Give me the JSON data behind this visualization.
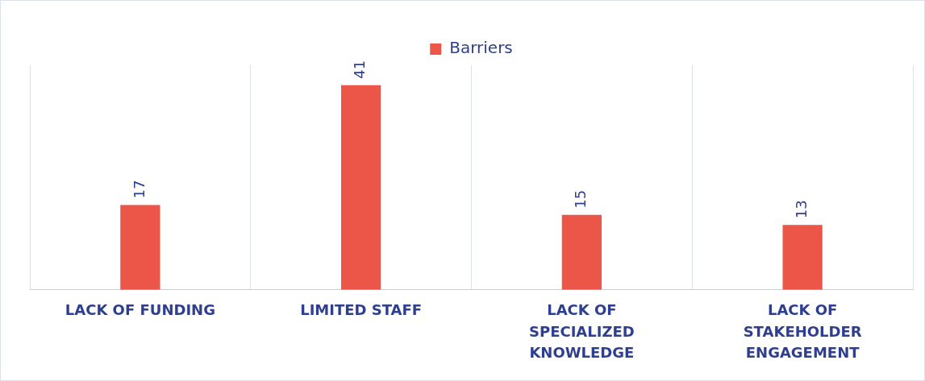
{
  "chart_data": {
    "type": "bar",
    "categories": [
      "LACK OF FUNDING",
      "LIMITED STAFF",
      "LACK OF SPECIALIZED KNOWLEDGE",
      "LACK OF STAKEHOLDER ENGAGEMENT"
    ],
    "series": [
      {
        "name": "Barriers",
        "color": "#eb5649",
        "values": [
          17,
          41,
          15,
          13
        ]
      }
    ],
    "ylim": [
      0,
      45
    ],
    "data_labels": true,
    "grid": "x",
    "legend": "top",
    "tick_labels": "x"
  }
}
